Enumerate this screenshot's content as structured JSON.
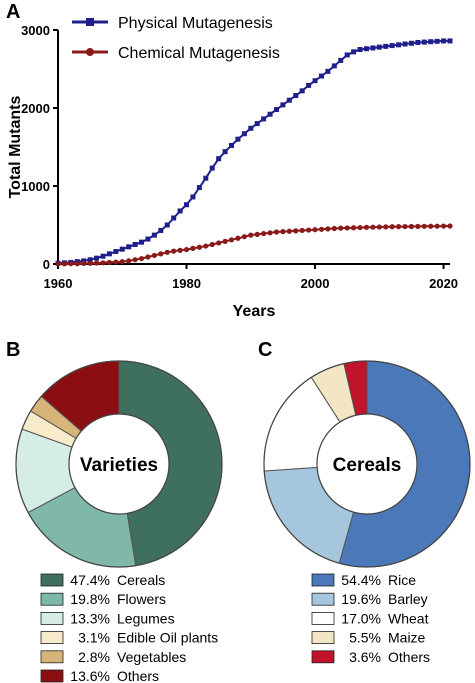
{
  "chart_data": [
    {
      "panel": "A",
      "type": "line",
      "xlabel": "Years",
      "ylabel": "Total Mutants",
      "xlim": [
        1960,
        2021
      ],
      "ylim": [
        0,
        3000
      ],
      "xticks": [
        1960,
        1980,
        2000,
        2020
      ],
      "yticks": [
        0,
        1000,
        2000,
        3000
      ],
      "legend_placement": "top-left",
      "series": [
        {
          "name": "Physical Mutagenesis",
          "color": "#1f1f8c",
          "marker": "square",
          "x": [
            1960,
            1961,
            1962,
            1963,
            1964,
            1965,
            1966,
            1967,
            1968,
            1969,
            1970,
            1971,
            1972,
            1973,
            1974,
            1975,
            1976,
            1977,
            1978,
            1979,
            1980,
            1981,
            1982,
            1983,
            1984,
            1985,
            1986,
            1987,
            1988,
            1989,
            1990,
            1991,
            1992,
            1993,
            1994,
            1995,
            1996,
            1997,
            1998,
            1999,
            2000,
            2001,
            2002,
            2003,
            2004,
            2005,
            2006,
            2007,
            2008,
            2009,
            2010,
            2011,
            2012,
            2013,
            2014,
            2015,
            2016,
            2017,
            2018,
            2019,
            2020,
            2021
          ],
          "y": [
            10,
            15,
            20,
            30,
            40,
            55,
            75,
            100,
            130,
            160,
            190,
            220,
            250,
            280,
            320,
            370,
            430,
            500,
            590,
            680,
            760,
            860,
            980,
            1100,
            1230,
            1350,
            1440,
            1520,
            1600,
            1670,
            1740,
            1800,
            1860,
            1920,
            1980,
            2040,
            2100,
            2160,
            2220,
            2290,
            2350,
            2410,
            2470,
            2540,
            2610,
            2680,
            2720,
            2750,
            2760,
            2770,
            2780,
            2790,
            2800,
            2810,
            2820,
            2830,
            2840,
            2845,
            2850,
            2855,
            2860,
            2860
          ]
        },
        {
          "name": "Chemical Mutagenesis",
          "color": "#8b1a1a",
          "marker": "circle",
          "x": [
            1960,
            1961,
            1962,
            1963,
            1964,
            1965,
            1966,
            1967,
            1968,
            1969,
            1970,
            1971,
            1972,
            1973,
            1974,
            1975,
            1976,
            1977,
            1978,
            1979,
            1980,
            1981,
            1982,
            1983,
            1984,
            1985,
            1986,
            1987,
            1988,
            1989,
            1990,
            1991,
            1992,
            1993,
            1994,
            1995,
            1996,
            1997,
            1998,
            1999,
            2000,
            2001,
            2002,
            2003,
            2004,
            2005,
            2006,
            2007,
            2008,
            2009,
            2010,
            2011,
            2012,
            2013,
            2014,
            2015,
            2016,
            2017,
            2018,
            2019,
            2020,
            2021
          ],
          "y": [
            2,
            3,
            4,
            5,
            7,
            9,
            12,
            15,
            20,
            25,
            30,
            40,
            55,
            70,
            90,
            110,
            130,
            150,
            165,
            175,
            185,
            200,
            215,
            230,
            250,
            270,
            290,
            310,
            330,
            350,
            370,
            380,
            390,
            400,
            410,
            415,
            420,
            425,
            430,
            435,
            440,
            445,
            450,
            455,
            460,
            462,
            465,
            467,
            470,
            472,
            474,
            476,
            478,
            479,
            480,
            481,
            482,
            483,
            484,
            485,
            486,
            487
          ]
        }
      ]
    },
    {
      "panel": "B",
      "type": "pie",
      "center_label": "Varieties",
      "slices": [
        {
          "pct": "47.4%",
          "value": 47.4,
          "label": "Cereals",
          "color": "#3f6f5f"
        },
        {
          "pct": "19.8%",
          "value": 19.8,
          "label": "Flowers",
          "color": "#7fb7a8"
        },
        {
          "pct": "13.3%",
          "value": 13.3,
          "label": "Legumes",
          "color": "#d6ece6"
        },
        {
          "pct": "3.1%",
          "value": 3.1,
          "label": "Edible Oil plants",
          "color": "#f7ebcc"
        },
        {
          "pct": "2.8%",
          "value": 2.8,
          "label": "Vegetables",
          "color": "#d6b47a"
        },
        {
          "pct": "13.6%",
          "value": 13.6,
          "label": "Others",
          "color": "#8b0f12"
        }
      ]
    },
    {
      "panel": "C",
      "type": "pie",
      "center_label": "Cereals",
      "slices": [
        {
          "pct": "54.4%",
          "value": 54.4,
          "label": "Rice",
          "color": "#4a78b8"
        },
        {
          "pct": "19.6%",
          "value": 19.6,
          "label": "Barley",
          "color": "#a6c6de"
        },
        {
          "pct": "17.0%",
          "value": 17.0,
          "label": "Wheat",
          "color": "#ffffff"
        },
        {
          "pct": "5.5%",
          "value": 5.5,
          "label": "Maize",
          "color": "#f3e6c4"
        },
        {
          "pct": "3.6%",
          "value": 3.6,
          "label": "Others",
          "color": "#c0142c"
        }
      ]
    }
  ]
}
